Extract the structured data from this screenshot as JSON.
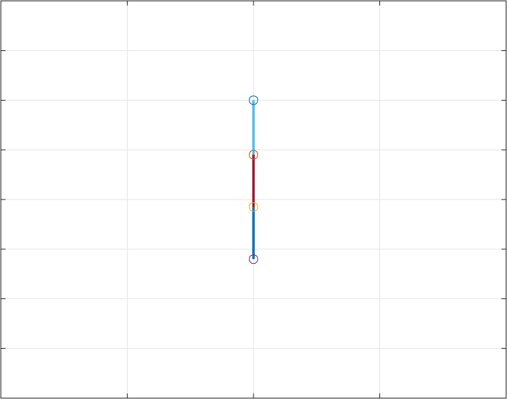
{
  "chart_data": {
    "type": "line",
    "title": "",
    "xlabel": "",
    "ylabel": "",
    "xlim": [
      0,
      4
    ],
    "ylim": [
      0,
      8
    ],
    "x_ticks": [
      0,
      1,
      2,
      3,
      4
    ],
    "y_ticks": [
      0,
      1,
      2,
      3,
      4,
      5,
      6,
      7,
      8
    ],
    "grid": true,
    "tick_labels_visible": false,
    "segments": [
      {
        "x": [
          2,
          2
        ],
        "y": [
          6,
          4.9
        ],
        "color": "#4DBEEE"
      },
      {
        "x": [
          2,
          2
        ],
        "y": [
          4.9,
          3.85
        ],
        "color": "#A2142F"
      },
      {
        "x": [
          2,
          2
        ],
        "y": [
          3.85,
          2.8
        ],
        "color": "#0072BD"
      }
    ],
    "markers": [
      {
        "x": 2,
        "y": 6,
        "color": "#0072BD",
        "shape": "circle"
      },
      {
        "x": 2,
        "y": 4.9,
        "color": "#D95319",
        "shape": "circle"
      },
      {
        "x": 2,
        "y": 3.85,
        "color": "#EDB120",
        "shape": "circle"
      },
      {
        "x": 2,
        "y": 2.8,
        "color": "#7E2F8E",
        "shape": "circle"
      }
    ],
    "colors": {
      "axes": "#262626",
      "grid": "#e6e6e6",
      "background": "#ffffff"
    }
  }
}
